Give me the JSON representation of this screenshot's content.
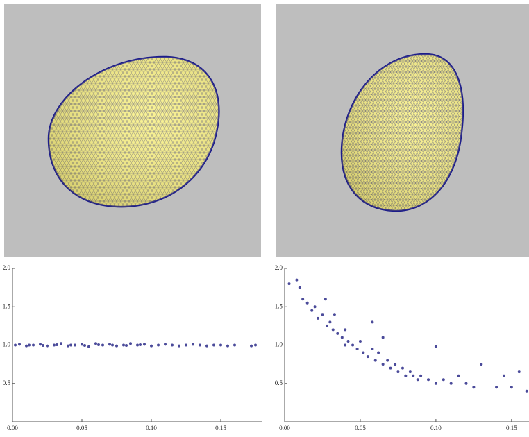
{
  "chart_data": [
    {
      "type": "scatter",
      "color": "#4b4b9a",
      "xlim": [
        0,
        0.18
      ],
      "ylim": [
        0,
        2.0
      ],
      "xticks": [
        {
          "value": 0,
          "label": "0.00"
        },
        {
          "value": 0.05,
          "label": "0.05"
        },
        {
          "value": 0.1,
          "label": "0.10"
        },
        {
          "value": 0.15,
          "label": "0.15"
        }
      ],
      "yticks": [
        0.5,
        {
          "value": 1.0,
          "label": "1.0"
        },
        1.5,
        {
          "value": 2.0,
          "label": "2.0"
        }
      ],
      "x": [
        0.002,
        0.005,
        0.01,
        0.012,
        0.015,
        0.02,
        0.022,
        0.025,
        0.03,
        0.032,
        0.035,
        0.04,
        0.042,
        0.045,
        0.05,
        0.052,
        0.055,
        0.06,
        0.062,
        0.065,
        0.07,
        0.072,
        0.075,
        0.08,
        0.082,
        0.085,
        0.09,
        0.092,
        0.095,
        0.1,
        0.105,
        0.11,
        0.115,
        0.12,
        0.125,
        0.13,
        0.135,
        0.14,
        0.145,
        0.15,
        0.155,
        0.16,
        0.172,
        0.175
      ],
      "values": [
        1.0,
        1.01,
        0.99,
        1.0,
        1.0,
        1.01,
        0.995,
        0.99,
        1.0,
        1.005,
        1.02,
        0.99,
        1.0,
        1.0,
        1.01,
        0.995,
        0.98,
        1.02,
        1.005,
        1.0,
        1.01,
        1.0,
        0.99,
        1.0,
        0.995,
        1.02,
        1.0,
        1.005,
        1.01,
        0.99,
        1.0,
        1.01,
        1.0,
        0.99,
        1.0,
        1.01,
        1.0,
        0.99,
        1.0,
        1.0,
        0.99,
        1.0,
        0.99,
        1.0
      ]
    },
    {
      "type": "scatter",
      "color": "#4b4b9a",
      "xlim": [
        0,
        0.162
      ],
      "ylim": [
        0,
        2.0
      ],
      "xticks": [
        {
          "value": 0,
          "label": "0.00"
        },
        {
          "value": 0.05,
          "label": "0.05"
        },
        {
          "value": 0.1,
          "label": "0.10"
        },
        {
          "value": 0.15,
          "label": "0.15"
        }
      ],
      "yticks": [
        0.5,
        {
          "value": 1.0,
          "label": "1.0"
        },
        1.5,
        {
          "value": 2.0,
          "label": "2.0"
        }
      ],
      "x": [
        0.003,
        0.008,
        0.01,
        0.012,
        0.015,
        0.018,
        0.02,
        0.022,
        0.025,
        0.027,
        0.028,
        0.03,
        0.032,
        0.033,
        0.035,
        0.038,
        0.04,
        0.04,
        0.042,
        0.045,
        0.048,
        0.05,
        0.052,
        0.055,
        0.058,
        0.058,
        0.06,
        0.062,
        0.065,
        0.065,
        0.068,
        0.07,
        0.073,
        0.075,
        0.078,
        0.08,
        0.083,
        0.085,
        0.088,
        0.09,
        0.095,
        0.1,
        0.1,
        0.105,
        0.11,
        0.115,
        0.12,
        0.125,
        0.13,
        0.14,
        0.145,
        0.15,
        0.155,
        0.16
      ],
      "values": [
        1.8,
        1.85,
        1.75,
        1.6,
        1.55,
        1.45,
        1.5,
        1.35,
        1.4,
        1.6,
        1.25,
        1.3,
        1.2,
        1.4,
        1.15,
        1.1,
        1.2,
        1.0,
        1.05,
        1.0,
        0.95,
        1.05,
        0.9,
        0.85,
        0.95,
        1.3,
        0.8,
        0.9,
        0.75,
        1.1,
        0.8,
        0.7,
        0.75,
        0.65,
        0.7,
        0.6,
        0.65,
        0.6,
        0.55,
        0.6,
        0.55,
        0.5,
        0.98,
        0.55,
        0.5,
        0.6,
        0.5,
        0.45,
        0.75,
        0.45,
        0.6,
        0.45,
        0.65,
        0.4
      ]
    }
  ]
}
